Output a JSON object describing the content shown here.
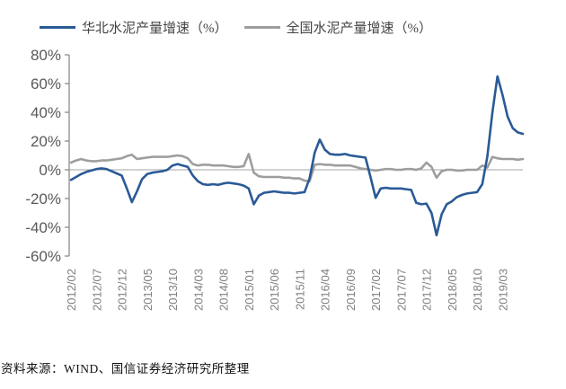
{
  "legend": {
    "north": "华北水泥产量增速（%）",
    "national": "全国水泥产量增速（%）"
  },
  "source": "资料来源：WIND、国信证券经济研究所整理",
  "colors": {
    "north_blue": "#2A5A96",
    "national_gray": "#9E9E9E",
    "zero_line": "#A6A6A6",
    "axis": "#8C8C8C",
    "y_label": "#595959",
    "x_label": "#808080"
  },
  "chart_data": {
    "type": "line",
    "title": "",
    "xlabel": "",
    "ylabel": "",
    "ylim": [
      -60,
      80
    ],
    "yticks": [
      80,
      60,
      40,
      20,
      0,
      -20,
      -40,
      -60
    ],
    "ytick_suffix": "%",
    "grid": "zero-line-only",
    "legend_position": "top",
    "xtick_labels": [
      "2012/02",
      "2012/07",
      "2012/12",
      "2013/05",
      "2013/10",
      "2014/03",
      "2014/08",
      "2015/01",
      "2015/06",
      "2015/11",
      "2016/04",
      "2016/09",
      "2017/02",
      "2017/07",
      "2017/12",
      "2018/05",
      "2018/10",
      "2019/03"
    ],
    "xtick_interval_months": 5,
    "x_months": [
      "2012/02",
      "2012/03",
      "2012/04",
      "2012/05",
      "2012/06",
      "2012/07",
      "2012/08",
      "2012/09",
      "2012/10",
      "2012/11",
      "2012/12",
      "2013/01",
      "2013/02",
      "2013/03",
      "2013/04",
      "2013/05",
      "2013/06",
      "2013/07",
      "2013/08",
      "2013/09",
      "2013/10",
      "2013/11",
      "2013/12",
      "2014/01",
      "2014/02",
      "2014/03",
      "2014/04",
      "2014/05",
      "2014/06",
      "2014/07",
      "2014/08",
      "2014/09",
      "2014/10",
      "2014/11",
      "2014/12",
      "2015/01",
      "2015/02",
      "2015/03",
      "2015/04",
      "2015/05",
      "2015/06",
      "2015/07",
      "2015/08",
      "2015/09",
      "2015/10",
      "2015/11",
      "2015/12",
      "2016/01",
      "2016/02",
      "2016/03",
      "2016/04",
      "2016/05",
      "2016/06",
      "2016/07",
      "2016/08",
      "2016/09",
      "2016/10",
      "2016/11",
      "2016/12",
      "2017/01",
      "2017/02",
      "2017/03",
      "2017/04",
      "2017/05",
      "2017/06",
      "2017/07",
      "2017/08",
      "2017/09",
      "2017/10",
      "2017/11",
      "2017/12",
      "2018/01",
      "2018/02",
      "2018/03",
      "2018/04",
      "2018/05",
      "2018/06",
      "2018/07",
      "2018/08",
      "2018/09",
      "2018/10",
      "2018/11",
      "2018/12",
      "2019/01",
      "2019/02",
      "2019/03",
      "2019/04",
      "2019/05",
      "2019/06",
      "2019/07"
    ],
    "series": [
      {
        "id": "national",
        "name": "全国水泥产量增速（%）",
        "color": "#9E9E9E",
        "values": [
          5,
          6.5,
          7.5,
          6.5,
          6,
          6,
          6.5,
          6.5,
          7,
          7.5,
          8,
          9.5,
          10.5,
          7.5,
          8,
          8.5,
          9,
          9,
          9,
          9,
          9.5,
          10,
          9.5,
          8,
          4,
          3,
          3.5,
          3.5,
          3,
          3,
          3,
          2.5,
          2,
          2,
          2.5,
          11,
          -2,
          -4.5,
          -5,
          -5,
          -5,
          -5,
          -5.5,
          -5.5,
          -6,
          -6,
          -7.5,
          -8,
          3.5,
          4,
          3.5,
          3.5,
          3,
          3,
          3,
          3,
          2,
          1,
          0.5,
          0,
          -0.5,
          0,
          0.5,
          0.5,
          0,
          0,
          0.5,
          0.5,
          0,
          1,
          5,
          2,
          -5.5,
          -1,
          0,
          0,
          -0.5,
          -0.5,
          0,
          0,
          0,
          3,
          1.5,
          9,
          8,
          7.5,
          7.5,
          7.5,
          7,
          7.5
        ]
      },
      {
        "id": "north",
        "name": "华北水泥产量增速（%）",
        "color": "#2A5A96",
        "values": [
          -7,
          -5,
          -3,
          -1.5,
          -0.5,
          0.5,
          1,
          0.5,
          -1,
          -2.5,
          -4,
          -13,
          -22.5,
          -15,
          -6.5,
          -3,
          -2,
          -1.5,
          -1,
          0,
          3,
          4,
          3,
          2,
          -4,
          -8,
          -10,
          -10.5,
          -10,
          -10.5,
          -9.5,
          -9,
          -9.5,
          -10,
          -11,
          -13,
          -24,
          -18,
          -16,
          -15.5,
          -15,
          -15.5,
          -16,
          -16,
          -16.5,
          -16,
          -15.5,
          -6,
          12,
          21,
          14,
          11,
          10.5,
          10.5,
          11,
          10,
          9.5,
          9,
          8.5,
          -5,
          -19.5,
          -13,
          -12.5,
          -13,
          -13,
          -13,
          -13.5,
          -14,
          -23,
          -24,
          -23.5,
          -30,
          -45.5,
          -31,
          -24,
          -22,
          -19,
          -17.5,
          -16.5,
          -16,
          -15.5,
          -10,
          9,
          40,
          65,
          52,
          37,
          29,
          26,
          25
        ]
      }
    ]
  }
}
